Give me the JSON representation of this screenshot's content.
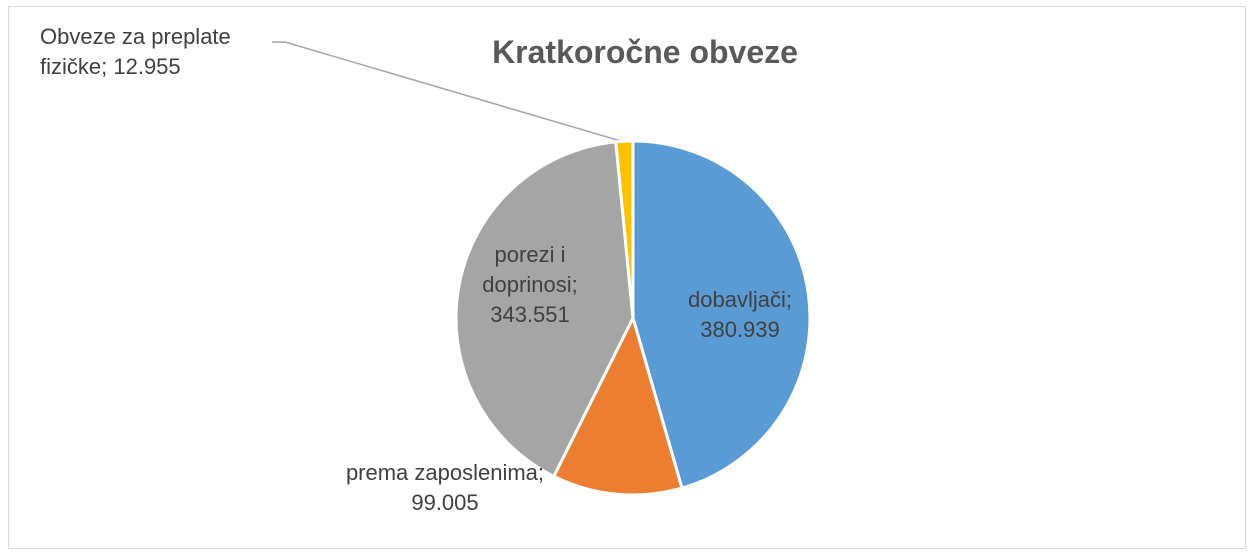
{
  "chart_data": {
    "type": "pie",
    "title": "Kratkoročne obveze",
    "categories": [
      "dobavljači",
      "prema zaposlenima",
      "porezi i doprinosi",
      "Obveze za preplate fizičke"
    ],
    "values": [
      380.939,
      99.005,
      343.551,
      12.955
    ],
    "colors": [
      "#5b9bd5",
      "#ed7d31",
      "#a5a5a5",
      "#ffc000"
    ],
    "label_separator": "; "
  }
}
